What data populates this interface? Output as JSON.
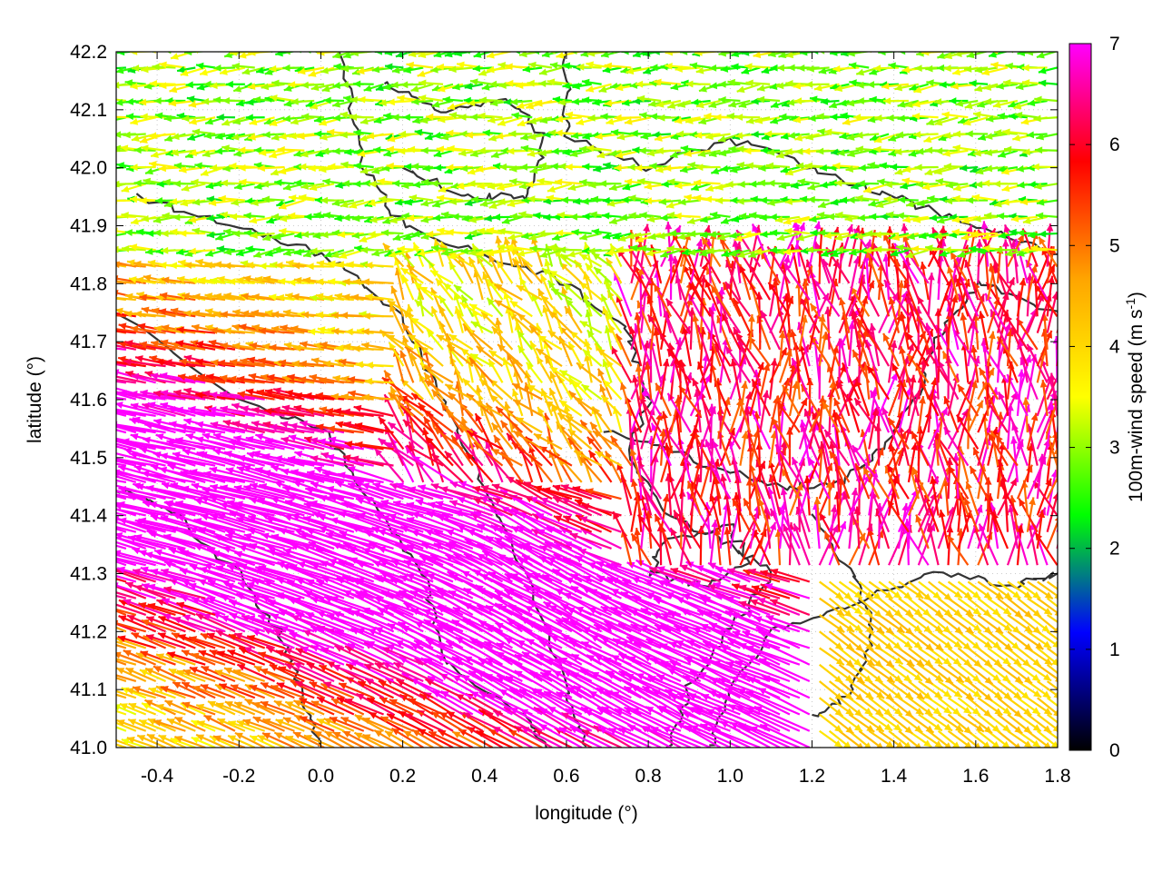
{
  "chart_data": {
    "type": "vector-field",
    "xlabel": "longitude (°)",
    "ylabel": "latitude (°)",
    "colorbar_label": "100m-wind speed (m s",
    "colorbar_label_sup": "-1",
    "colorbar_label_end": ")",
    "xlim": [
      -0.5,
      1.8
    ],
    "ylim": [
      41.0,
      42.2
    ],
    "x_ticks": [
      -0.4,
      -0.2,
      0.0,
      0.2,
      0.4,
      0.6,
      0.8,
      1.0,
      1.2,
      1.4,
      1.6,
      1.8
    ],
    "x_tick_labels": [
      "-0.4",
      "-0.2",
      "0.0",
      "0.2",
      "0.4",
      "0.6",
      "0.8",
      "1.0",
      "1.2",
      "1.4",
      "1.6",
      "1.8"
    ],
    "y_ticks": [
      41.0,
      41.1,
      41.2,
      41.3,
      41.4,
      41.5,
      41.6,
      41.7,
      41.8,
      41.9,
      42.0,
      42.1,
      42.2
    ],
    "y_tick_labels": [
      "41.0",
      "41.1",
      "41.2",
      "41.3",
      "41.4",
      "41.5",
      "41.6",
      "41.7",
      "41.8",
      "41.9",
      "42.0",
      "42.1",
      "42.2"
    ],
    "grid": true,
    "colorbar": {
      "range": [
        0,
        7
      ],
      "ticks": [
        0,
        1,
        2,
        3,
        4,
        5,
        6,
        7
      ],
      "tick_labels": [
        "0",
        "1",
        "2",
        "3",
        "4",
        "5",
        "6",
        "7"
      ],
      "stops": [
        "#000000",
        "#0000ff",
        "#00ff00",
        "#ffff00",
        "#ffa500",
        "#ff0000",
        "#ff00ff"
      ]
    },
    "contour_color": "#333333"
  }
}
